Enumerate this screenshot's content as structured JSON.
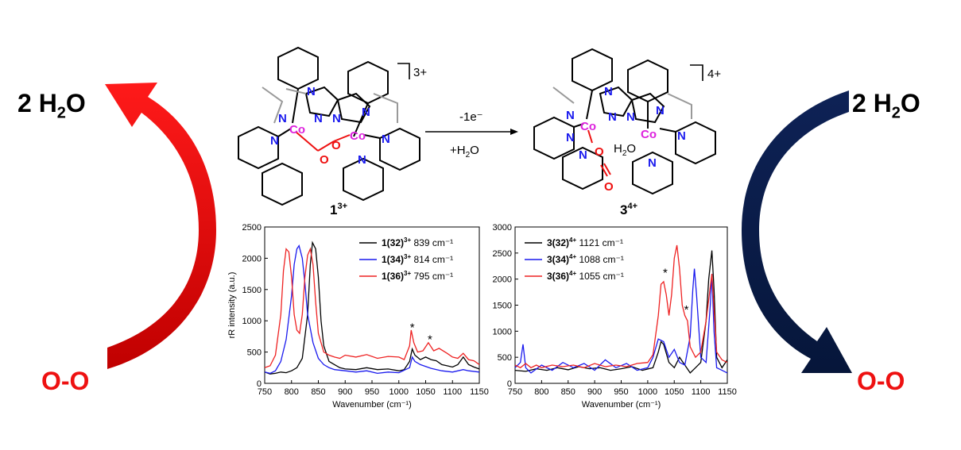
{
  "cycle": {
    "left_top": "2 H2O",
    "left_bottom": "O-O",
    "right_top": "2 H2O",
    "right_bottom": "O-O",
    "left_arrow_color": "#e01010",
    "right_arrow_color": "#0d1e4e"
  },
  "scheme": {
    "reactant_label": "1",
    "reactant_charge": "3+",
    "reactant_bracket_charge": "3+",
    "product_label": "3",
    "product_charge": "4+",
    "product_bracket_charge": "4+",
    "arrow_top": "-1e⁻",
    "arrow_bottom": "+H2O",
    "atoms": {
      "co": "Co",
      "n": "N",
      "o": "O",
      "h2o": "H2O"
    },
    "colors": {
      "co": "#dd22dd",
      "n": "#1a1aee",
      "o": "#ee1111"
    }
  },
  "chart_data": [
    {
      "type": "line",
      "xlabel": "Wavenumber (cm⁻¹)",
      "ylabel": "rR intensity (a.u.)",
      "xlim": [
        750,
        1150
      ],
      "ylim": [
        0,
        2500
      ],
      "xticks": [
        750,
        800,
        850,
        900,
        950,
        1000,
        1050,
        1100,
        1150
      ],
      "yticks": [
        0,
        500,
        1000,
        1500,
        2000,
        2500
      ],
      "legend_position": "top-right",
      "series": [
        {
          "name": "1(32)3+",
          "label_main": "1(32)",
          "label_sup": "3+",
          "peak_text": "839 cm⁻¹",
          "color": "#000000",
          "x": [
            750,
            760,
            770,
            780,
            790,
            800,
            810,
            820,
            830,
            835,
            839,
            845,
            850,
            855,
            860,
            870,
            880,
            890,
            900,
            920,
            940,
            960,
            980,
            1000,
            1010,
            1020,
            1025,
            1030,
            1040,
            1050,
            1060,
            1070,
            1080,
            1090,
            1100,
            1110,
            1120,
            1130,
            1140,
            1150
          ],
          "y": [
            180,
            150,
            160,
            180,
            170,
            200,
            250,
            400,
            1100,
            1900,
            2250,
            2150,
            1700,
            1000,
            600,
            350,
            300,
            250,
            230,
            220,
            250,
            220,
            230,
            200,
            220,
            350,
            550,
            450,
            380,
            420,
            380,
            360,
            300,
            280,
            260,
            300,
            420,
            300,
            260,
            230
          ]
        },
        {
          "name": "1(34)3+",
          "label_main": "1(34)",
          "label_sup": "3+",
          "peak_text": "814 cm⁻¹",
          "color": "#1a1aee",
          "x": [
            750,
            760,
            770,
            780,
            790,
            800,
            805,
            810,
            814,
            820,
            825,
            830,
            840,
            850,
            860,
            870,
            880,
            900,
            920,
            940,
            960,
            980,
            1000,
            1020,
            1025,
            1030,
            1040,
            1060,
            1080,
            1100,
            1120,
            1130,
            1150
          ],
          "y": [
            180,
            160,
            200,
            350,
            700,
            1400,
            1900,
            2150,
            2200,
            2000,
            1600,
            1100,
            650,
            400,
            300,
            250,
            220,
            200,
            180,
            200,
            160,
            180,
            170,
            250,
            420,
            350,
            300,
            240,
            200,
            180,
            220,
            200,
            180
          ]
        },
        {
          "name": "1(36)3+",
          "label_main": "1(36)",
          "label_sup": "3+",
          "peak_text": "795 cm⁻¹",
          "color": "#ee2222",
          "x": [
            750,
            760,
            770,
            780,
            785,
            790,
            795,
            800,
            805,
            810,
            815,
            820,
            825,
            830,
            835,
            840,
            845,
            850,
            860,
            870,
            880,
            890,
            900,
            920,
            940,
            960,
            980,
            1000,
            1010,
            1020,
            1023,
            1028,
            1035,
            1045,
            1055,
            1065,
            1075,
            1090,
            1100,
            1110,
            1120,
            1130,
            1140,
            1150
          ],
          "y": [
            250,
            280,
            450,
            1100,
            1800,
            2150,
            2100,
            1700,
            1100,
            850,
            800,
            1100,
            1700,
            2050,
            2150,
            1900,
            1300,
            800,
            500,
            450,
            420,
            400,
            450,
            420,
            460,
            400,
            430,
            420,
            380,
            600,
            850,
            650,
            500,
            520,
            650,
            520,
            560,
            480,
            420,
            400,
            480,
            380,
            360,
            300
          ]
        }
      ],
      "annotations": [
        {
          "text": "*",
          "x": 1025,
          "y": 830
        },
        {
          "text": "*",
          "x": 1058,
          "y": 640
        }
      ]
    },
    {
      "type": "line",
      "xlabel": "Wavenumber (cm⁻¹)",
      "ylabel": "",
      "xlim": [
        750,
        1150
      ],
      "ylim": [
        0,
        3000
      ],
      "xticks": [
        750,
        800,
        850,
        900,
        950,
        1000,
        1050,
        1100,
        1150
      ],
      "yticks": [
        0,
        500,
        1000,
        1500,
        2000,
        2500,
        3000
      ],
      "legend_position": "top-left",
      "series": [
        {
          "name": "3(32)4+",
          "label_main": "3(32)",
          "label_sup": "4+",
          "peak_text": "1121 cm⁻¹",
          "color": "#000000",
          "x": [
            750,
            770,
            790,
            810,
            830,
            850,
            870,
            890,
            910,
            930,
            950,
            970,
            990,
            1010,
            1020,
            1025,
            1030,
            1040,
            1050,
            1060,
            1070,
            1080,
            1090,
            1100,
            1110,
            1115,
            1121,
            1125,
            1130,
            1140,
            1150
          ],
          "y": [
            250,
            230,
            280,
            250,
            300,
            260,
            320,
            280,
            300,
            250,
            280,
            320,
            250,
            300,
            600,
            800,
            750,
            400,
            300,
            500,
            350,
            200,
            300,
            400,
            1200,
            2000,
            2550,
            1800,
            500,
            300,
            450
          ]
        },
        {
          "name": "3(34)4+",
          "label_main": "3(34)",
          "label_sup": "4+",
          "peak_text": "1088 cm⁻¹",
          "color": "#1a1aee",
          "x": [
            750,
            760,
            765,
            770,
            780,
            800,
            820,
            840,
            860,
            880,
            900,
            920,
            940,
            960,
            980,
            1000,
            1010,
            1020,
            1030,
            1040,
            1050,
            1060,
            1070,
            1080,
            1085,
            1088,
            1092,
            1100,
            1110,
            1118,
            1121,
            1125,
            1130,
            1140,
            1150
          ],
          "y": [
            300,
            400,
            750,
            300,
            200,
            350,
            250,
            400,
            300,
            380,
            250,
            450,
            300,
            380,
            250,
            300,
            500,
            850,
            800,
            500,
            650,
            400,
            350,
            900,
            1800,
            2200,
            1700,
            500,
            400,
            1500,
            2100,
            1000,
            300,
            250,
            200
          ]
        },
        {
          "name": "3(36)4+",
          "label_main": "3(36)",
          "label_sup": "4+",
          "peak_text": "1055 cm⁻¹",
          "color": "#ee2222",
          "x": [
            750,
            760,
            770,
            780,
            790,
            800,
            820,
            840,
            860,
            880,
            900,
            920,
            940,
            960,
            980,
            1000,
            1010,
            1020,
            1025,
            1030,
            1035,
            1040,
            1045,
            1050,
            1055,
            1060,
            1065,
            1070,
            1075,
            1080,
            1090,
            1100,
            1110,
            1121,
            1130,
            1140,
            1150
          ],
          "y": [
            350,
            300,
            380,
            300,
            350,
            300,
            350,
            320,
            350,
            300,
            380,
            320,
            350,
            320,
            380,
            400,
            550,
            1300,
            1900,
            1950,
            1700,
            1300,
            1700,
            2400,
            2650,
            2200,
            1500,
            1300,
            1200,
            700,
            500,
            600,
            1200,
            2100,
            600,
            450,
            400
          ]
        }
      ],
      "annotations": [
        {
          "text": "*",
          "x": 1033,
          "y": 2050
        },
        {
          "text": "*",
          "x": 1073,
          "y": 1340
        }
      ]
    }
  ]
}
